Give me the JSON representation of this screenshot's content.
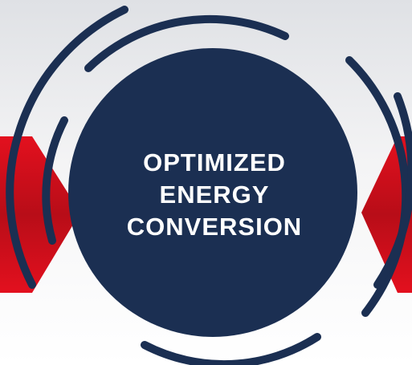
{
  "title_lines": [
    "OPTIMIZED",
    "ENERGY",
    "CONVERSION"
  ]
}
